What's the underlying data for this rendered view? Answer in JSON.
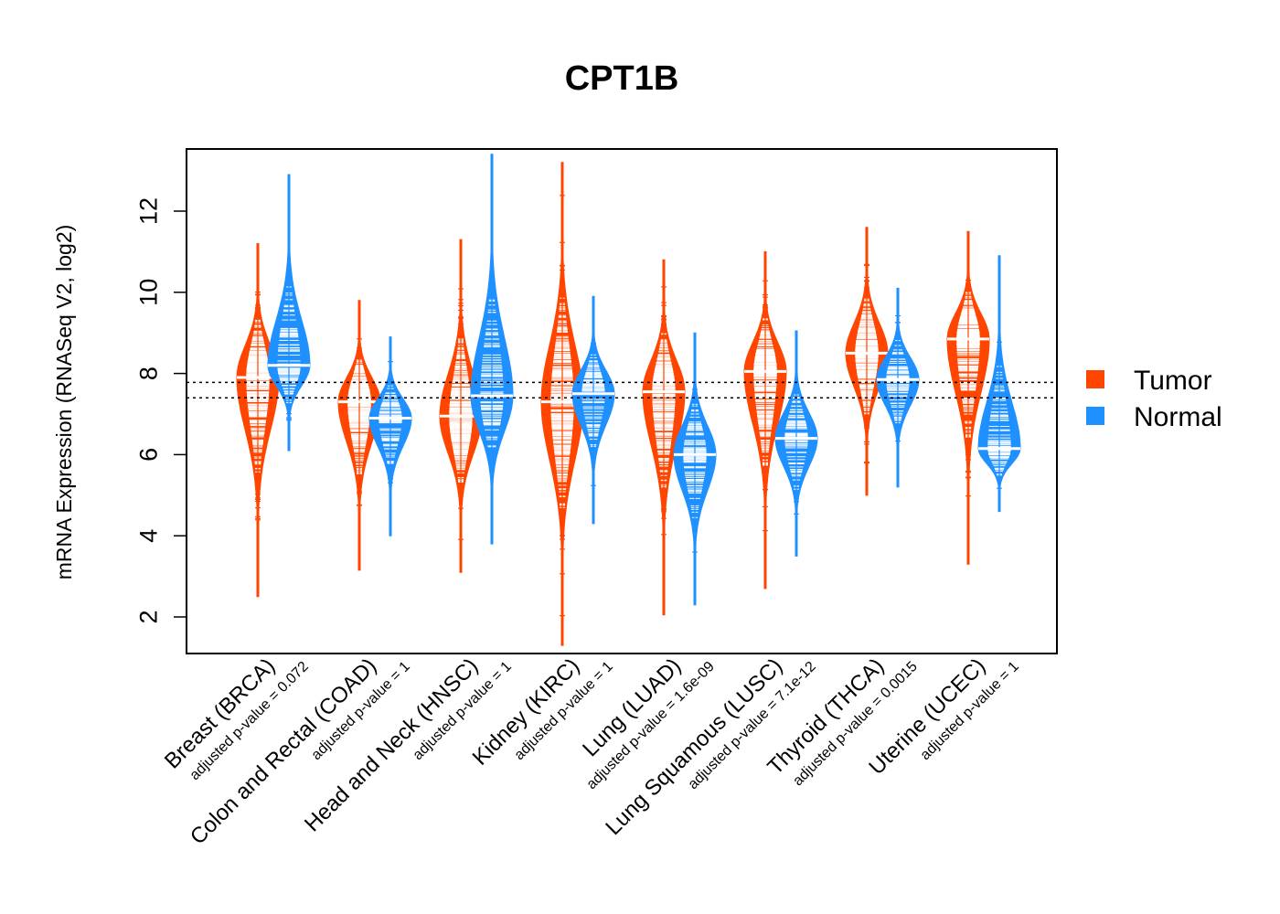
{
  "chart_data": {
    "type": "violin",
    "title": "CPT1B",
    "xlabel": "",
    "ylabel": "mRNA Expression (RNASeq V2, log2)",
    "ylim": [
      1.1,
      13.5
    ],
    "yticks": [
      2,
      4,
      6,
      8,
      10,
      12
    ],
    "grid": false,
    "legend": {
      "position": "right",
      "entries": [
        {
          "label": "Tumor",
          "color": "#FF4500"
        },
        {
          "label": "Normal",
          "color": "#1E90FF"
        }
      ]
    },
    "reference_lines": [
      7.78,
      7.4
    ],
    "categories": [
      {
        "label": "Breast (BRCA)",
        "pvalue": "adjusted p-value = 0.072"
      },
      {
        "label": "Colon and Rectal (COAD)",
        "pvalue": "adjusted p-value = 1"
      },
      {
        "label": "Head and Neck (HNSC)",
        "pvalue": "adjusted p-value = 1"
      },
      {
        "label": "Kidney (KIRC)",
        "pvalue": "adjusted p-value = 1"
      },
      {
        "label": "Lung (LUAD)",
        "pvalue": "adjusted p-value = 1.6e-09"
      },
      {
        "label": "Lung Squamous (LUSC)",
        "pvalue": "adjusted p-value = 7.1e-12"
      },
      {
        "label": "Thyroid (THCA)",
        "pvalue": "adjusted p-value = 0.0015"
      },
      {
        "label": "Uterine (UCEC)",
        "pvalue": "adjusted p-value = 1"
      }
    ],
    "series": [
      {
        "name": "Tumor",
        "color": "#FF4500",
        "median": [
          7.9,
          7.3,
          6.95,
          7.3,
          7.55,
          8.05,
          8.5,
          8.85
        ],
        "min": [
          2.5,
          3.15,
          3.1,
          1.3,
          2.05,
          2.7,
          5.0,
          3.3
        ],
        "max": [
          11.2,
          9.8,
          11.3,
          13.2,
          10.8,
          11.0,
          11.6,
          11.5
        ]
      },
      {
        "name": "Normal",
        "color": "#1E90FF",
        "median": [
          8.2,
          6.9,
          7.45,
          7.5,
          6.0,
          6.4,
          7.85,
          6.15
        ],
        "min": [
          6.1,
          4.0,
          3.8,
          4.3,
          2.3,
          3.5,
          5.2,
          4.6
        ],
        "max": [
          12.9,
          8.9,
          13.4,
          9.9,
          9.0,
          9.05,
          10.1,
          10.9
        ]
      }
    ]
  }
}
